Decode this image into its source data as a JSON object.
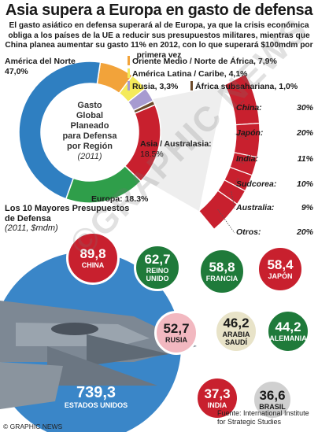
{
  "header": {
    "title": "Asia supera a Europa en gasto de defensa",
    "intro": "El gasto asiático en defensa superará al de Europa, ya que la crisis económica obliga a los países de la UE a reducir sus presupuestos militares, mientras que China planea aumentar su gasto 11% en 2012, con lo que superará $100mdm por primera vez"
  },
  "donut": {
    "center_lines": [
      "Gasto",
      "Global",
      "Planeado",
      "para Defensa",
      "por Región"
    ],
    "center_year": "(2011)"
  },
  "chart_data": [
    {
      "type": "pie",
      "title": "Gasto Global Planeado para Defensa por Región (2011)",
      "categories": [
        "América del Norte",
        "Oriente Medio / Norte de África",
        "América Latina / Caribe",
        "Rusia",
        "África subsahariana",
        "Asia / Australasia",
        "Europa"
      ],
      "label_texts": [
        "América del Norte",
        "Oriente Medio / Norte de África",
        "América Latina / Caribe",
        "Rusia",
        "África subsahariana",
        "Asia / Australasia:",
        "Europa:"
      ],
      "value_texts": [
        "47,0%",
        "7,9%",
        "4,1%",
        "3,3%",
        "1,0%",
        "18.5%",
        "18.3%"
      ],
      "values": [
        47.0,
        7.9,
        4.1,
        3.3,
        1.0,
        18.5,
        18.3
      ],
      "colors": [
        "#2f7fc1",
        "#f2a33a",
        "#f4ea5a",
        "#a79bd0",
        "#6c4a2a",
        "#c8202e",
        "#2f9e4a"
      ]
    },
    {
      "type": "bar",
      "title": "Asia / Australasia",
      "categories": [
        "China:",
        "Japón:",
        "India:",
        "Sudcorea:",
        "Australia:",
        "Otros:"
      ],
      "value_texts": [
        "30%",
        "20%",
        "11%",
        "10%",
        "9%",
        "20%"
      ],
      "values": [
        30,
        20,
        11,
        10,
        9,
        20
      ],
      "colors": [
        "#c8202e",
        "#d9333f",
        "#e04a55",
        "#e5606a",
        "#ea7880",
        "#ef9096"
      ]
    },
    {
      "type": "scatter",
      "title": "Los 10 Mayores Presupuestos de Defensa",
      "subtitle": "(2011, $mdm)",
      "categories": [
        "China",
        "Reino Unido",
        "Francia",
        "Japón",
        "Rusia",
        "Arabia Saudí",
        "Alemania",
        "Estados Unidos",
        "India",
        "Brasil"
      ],
      "value_texts": [
        "89,8",
        "62,7",
        "58,8",
        "58,4",
        "52,7",
        "46,2",
        "44,2",
        "739,3",
        "37,3",
        "36,6"
      ],
      "name_texts": [
        "CHINA",
        "REINO UNIDO",
        "FRANCIA",
        "JAPÓN",
        "RUSIA",
        "ARABIA SAUDÍ",
        "ALEMANIA",
        "ESTADOS UNIDOS",
        "INDIA",
        "BRASIL"
      ],
      "values": [
        89.8,
        62.7,
        58.8,
        58.4,
        52.7,
        46.2,
        44.2,
        739.3,
        37.3,
        36.6
      ],
      "colors": [
        "#c8202e",
        "#1f7a3a",
        "#1f7a3a",
        "#c8202e",
        "#f2b8c0",
        "#e8e3c8",
        "#1f7a3a",
        "#2f7fc1",
        "#c8202e",
        "#d0d0d0"
      ],
      "text_colors": [
        "#ffffff",
        "#ffffff",
        "#ffffff",
        "#ffffff",
        "#1a1a1a",
        "#1a1a1a",
        "#ffffff",
        "#ffffff",
        "#ffffff",
        "#1a1a1a"
      ]
    }
  ],
  "footer": {
    "source": "Fuente: International Institute for Strategic Studies",
    "copyright": "© GRAPHIC NEWS",
    "watermark": "©GRAPHIC NEWS"
  }
}
